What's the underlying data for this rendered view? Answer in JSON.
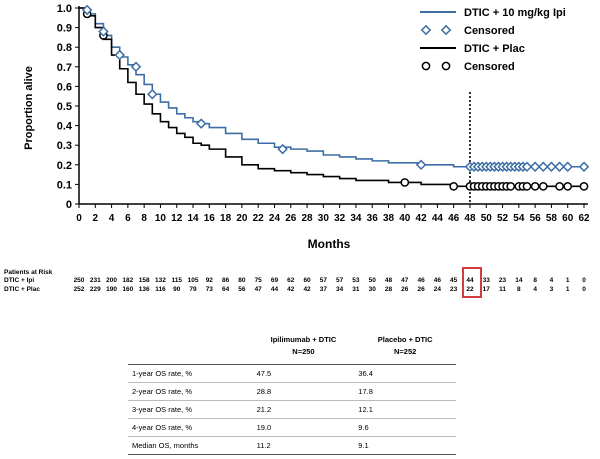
{
  "chart_data": {
    "type": "line",
    "title": "",
    "xlabel": "Months",
    "ylabel": "Proportion alive",
    "xlim": [
      0,
      62
    ],
    "ylim": [
      0,
      1.0
    ],
    "x_ticks": [
      0,
      2,
      4,
      6,
      8,
      10,
      12,
      14,
      16,
      18,
      20,
      22,
      24,
      26,
      28,
      30,
      32,
      34,
      36,
      38,
      40,
      42,
      44,
      46,
      48,
      50,
      52,
      54,
      56,
      58,
      60,
      62
    ],
    "y_ticks": [
      0,
      0.1,
      0.2,
      0.3,
      0.4,
      0.5,
      0.6,
      0.7,
      0.8,
      0.9,
      1.0
    ],
    "y_tick_labels": [
      "0",
      "0.1",
      "0.2",
      "0.3",
      "0.4",
      "0.5",
      "0.6",
      "0.7",
      "0.8",
      "0.9",
      "1.0"
    ],
    "reference_line_x": 48,
    "legend": {
      "placement": "top-right",
      "entries": [
        {
          "label": "DTIC + 10 mg/kg Ipi",
          "kind": "line",
          "color": "#3c6ea5"
        },
        {
          "label": "Censored",
          "kind": "diamond",
          "color": "#3c6ea5"
        },
        {
          "label": "DTIC + Plac",
          "kind": "line",
          "color": "#000000"
        },
        {
          "label": "Censored",
          "kind": "circle",
          "color": "#000000"
        }
      ]
    },
    "series": [
      {
        "name": "DTIC + 10 mg/kg Ipi",
        "color": "#3c6ea5",
        "x": [
          0,
          1,
          2,
          3,
          4,
          5,
          6,
          7,
          8,
          9,
          10,
          11,
          12,
          13,
          14,
          15,
          16,
          18,
          20,
          22,
          24,
          26,
          28,
          30,
          32,
          34,
          36,
          38,
          40,
          42,
          44,
          46,
          48,
          50,
          52,
          54,
          56,
          58,
          60,
          62
        ],
        "y": [
          1.0,
          0.97,
          0.92,
          0.86,
          0.8,
          0.75,
          0.71,
          0.66,
          0.61,
          0.56,
          0.52,
          0.49,
          0.46,
          0.44,
          0.42,
          0.41,
          0.39,
          0.36,
          0.33,
          0.31,
          0.29,
          0.28,
          0.27,
          0.25,
          0.24,
          0.23,
          0.22,
          0.21,
          0.21,
          0.2,
          0.2,
          0.19,
          0.19,
          0.19,
          0.19,
          0.19,
          0.19,
          0.19,
          0.19,
          0.19
        ],
        "censored_x": [
          1,
          3,
          5,
          7,
          9,
          15,
          25,
          42,
          48,
          48.5,
          49,
          49.5,
          50,
          50.5,
          51,
          51.5,
          52,
          52.5,
          53,
          53.5,
          54,
          54.5,
          55,
          56,
          57,
          58,
          59,
          60,
          62
        ],
        "censored_y": [
          0.99,
          0.88,
          0.76,
          0.7,
          0.56,
          0.41,
          0.28,
          0.2,
          0.19,
          0.19,
          0.19,
          0.19,
          0.19,
          0.19,
          0.19,
          0.19,
          0.19,
          0.19,
          0.19,
          0.19,
          0.19,
          0.19,
          0.19,
          0.19,
          0.19,
          0.19,
          0.19,
          0.19,
          0.19
        ]
      },
      {
        "name": "DTIC + Plac",
        "color": "#000000",
        "x": [
          0,
          1,
          2,
          3,
          4,
          5,
          6,
          7,
          8,
          9,
          10,
          11,
          12,
          13,
          14,
          15,
          16,
          18,
          20,
          22,
          24,
          26,
          28,
          30,
          32,
          34,
          36,
          38,
          40,
          42,
          44,
          46,
          48,
          50,
          52,
          54,
          56,
          58,
          60,
          62
        ],
        "y": [
          1.0,
          0.96,
          0.9,
          0.84,
          0.76,
          0.69,
          0.62,
          0.56,
          0.51,
          0.46,
          0.42,
          0.39,
          0.36,
          0.34,
          0.31,
          0.3,
          0.28,
          0.24,
          0.2,
          0.18,
          0.17,
          0.16,
          0.15,
          0.14,
          0.13,
          0.12,
          0.12,
          0.11,
          0.11,
          0.1,
          0.1,
          0.09,
          0.09,
          0.09,
          0.09,
          0.09,
          0.09,
          0.09,
          0.09,
          0.09
        ],
        "censored_x": [
          1,
          3,
          40,
          46,
          48,
          48.5,
          49,
          49.5,
          50,
          50.5,
          51,
          51.5,
          52,
          52.5,
          53,
          54,
          54.5,
          55,
          56,
          57,
          59,
          60,
          62
        ],
        "censored_y": [
          0.97,
          0.86,
          0.11,
          0.09,
          0.09,
          0.09,
          0.09,
          0.09,
          0.09,
          0.09,
          0.09,
          0.09,
          0.09,
          0.09,
          0.09,
          0.09,
          0.09,
          0.09,
          0.09,
          0.09,
          0.09,
          0.09,
          0.09
        ]
      }
    ]
  },
  "risk_table": {
    "title": "Patients at Risk",
    "rows": [
      {
        "label": "DTIC + Ipi",
        "values": [
          "250",
          "231",
          "200",
          "182",
          "158",
          "132",
          "115",
          "105",
          "92",
          "86",
          "80",
          "75",
          "69",
          "62",
          "60",
          "57",
          "57",
          "53",
          "50",
          "48",
          "47",
          "46",
          "46",
          "45",
          "44",
          "33",
          "23",
          "14",
          "8",
          "4",
          "1",
          "0"
        ]
      },
      {
        "label": "DTIC + Plac",
        "values": [
          "252",
          "229",
          "190",
          "160",
          "136",
          "116",
          "90",
          "79",
          "73",
          "64",
          "56",
          "47",
          "44",
          "42",
          "42",
          "37",
          "34",
          "31",
          "30",
          "28",
          "26",
          "26",
          "24",
          "23",
          "22",
          "17",
          "11",
          "8",
          "4",
          "3",
          "1",
          "0"
        ]
      }
    ]
  },
  "os_table": {
    "headers": [
      {
        "line1": "",
        "line2": ""
      },
      {
        "line1": "Ipilimumab + DTIC",
        "line2": "N=250"
      },
      {
        "line1": "Placebo + DTIC",
        "line2": "N=252"
      }
    ],
    "rows": [
      {
        "label": "1-year OS rate, %",
        "ipi": "47.5",
        "plac": "36.4"
      },
      {
        "label": "2-year OS rate, %",
        "ipi": "28.8",
        "plac": "17.8"
      },
      {
        "label": "3-year OS rate, %",
        "ipi": "21.2",
        "plac": "12.1"
      },
      {
        "label": "4-year OS rate, %",
        "ipi": "19.0",
        "plac": "9.6"
      },
      {
        "label": "Median OS, months",
        "ipi": "11.2",
        "plac": "9.1"
      }
    ]
  }
}
